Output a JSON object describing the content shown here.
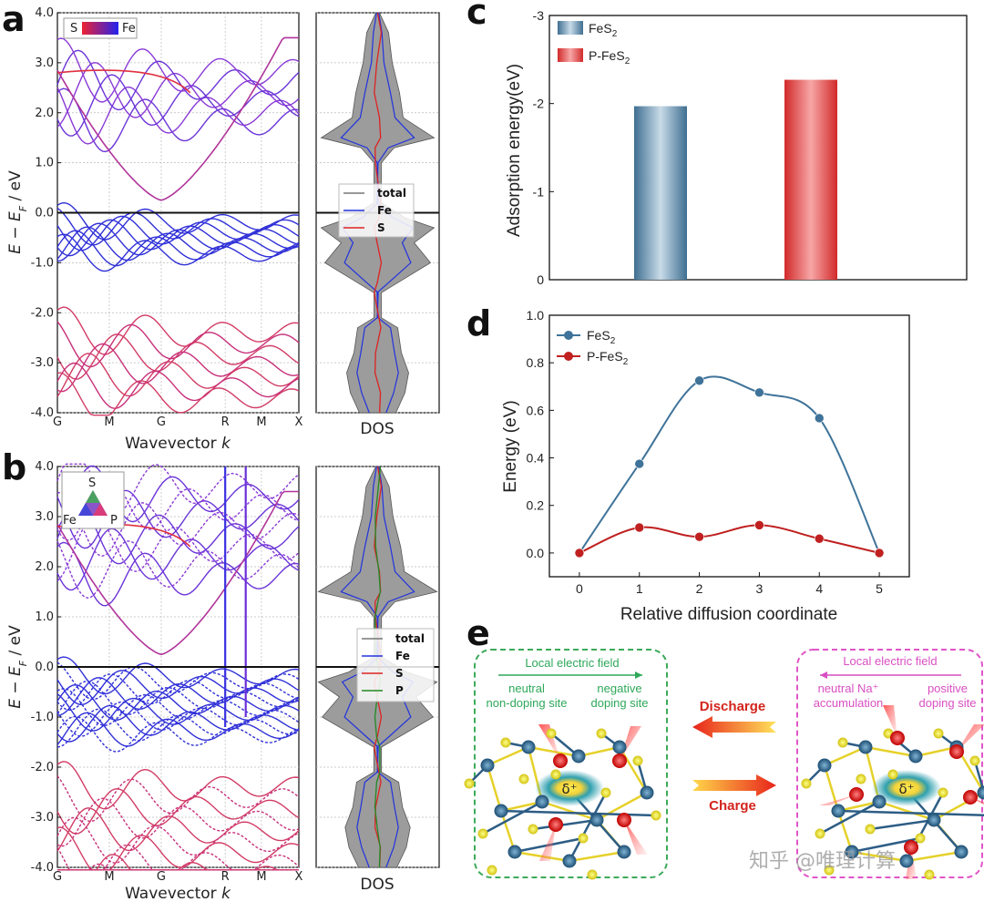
{
  "panels": {
    "a": "a",
    "b": "b",
    "c": "c",
    "d": "d",
    "e": "e"
  },
  "band_structure": {
    "k_ticks": [
      "G",
      "M",
      "G",
      "R",
      "M",
      "X"
    ],
    "xlabel": "Wavevector k",
    "ylabel": "E − E_F / eV",
    "y_ticks": [
      "-4.0",
      "-3.0",
      "-2.0",
      "-1.0",
      "0.0",
      "1.0",
      "2.0",
      "3.0",
      "4.0"
    ],
    "dos_label": "DOS",
    "a_legend": {
      "left": "S",
      "right": "Fe"
    },
    "b_legend": {
      "top": "S",
      "left": "Fe",
      "right": "P"
    },
    "dos_a_legend": [
      "total",
      "Fe",
      "S"
    ],
    "dos_b_legend": [
      "total",
      "Fe",
      "S",
      "P"
    ]
  },
  "chart_data": [
    {
      "type": "bar",
      "panel": "c",
      "categories": [
        "FeS2",
        "P-FeS2"
      ],
      "legend_labels": [
        "FeS",
        "2",
        "P-FeS",
        "2"
      ],
      "values": [
        -1.97,
        -2.27
      ],
      "ylabel": "Adsorption energy(eV)",
      "ylim": [
        0,
        -3
      ],
      "y_ticks": [
        "0",
        "-1",
        "-2",
        "-3"
      ],
      "colors": [
        "#5b88a5",
        "#dd3a3a"
      ]
    },
    {
      "type": "line",
      "panel": "d",
      "x": [
        0,
        1,
        2,
        3,
        4,
        5
      ],
      "series": [
        {
          "name": "FeS2",
          "values": [
            0.0,
            0.375,
            0.725,
            0.675,
            0.567,
            0.0
          ],
          "color": "#3f7399"
        },
        {
          "name": "P-FeS2",
          "values": [
            0.0,
            0.107,
            0.068,
            0.117,
            0.06,
            0.0
          ],
          "color": "#c02020"
        }
      ],
      "legend_labels": [
        "FeS",
        "2",
        "P-FeS",
        "2"
      ],
      "xlabel": "Relative diffusion coordinate",
      "ylabel": "Energy (eV)",
      "xlim": [
        -0.5,
        5.5
      ],
      "ylim": [
        -0.1,
        1.0
      ],
      "x_ticks": [
        "0",
        "1",
        "2",
        "3",
        "4",
        "5"
      ],
      "y_ticks": [
        "0.0",
        "0.2",
        "0.4",
        "0.6",
        "0.8",
        "1.0"
      ]
    }
  ],
  "scheme": {
    "left_title": "Local electric field",
    "left_sub1a": "neutral",
    "left_sub1b": "non-doping site",
    "left_sub2a": "negative",
    "left_sub2b": "doping site",
    "right_title": "Local electric field",
    "right_sub1a": "neutral Na⁺",
    "right_sub1b": "accumulation",
    "right_sub2a": "positive",
    "right_sub2b": "doping site",
    "discharge": "Discharge",
    "charge": "Charge",
    "delta": "δ⁺"
  },
  "watermark": "知乎 @唯理计算"
}
